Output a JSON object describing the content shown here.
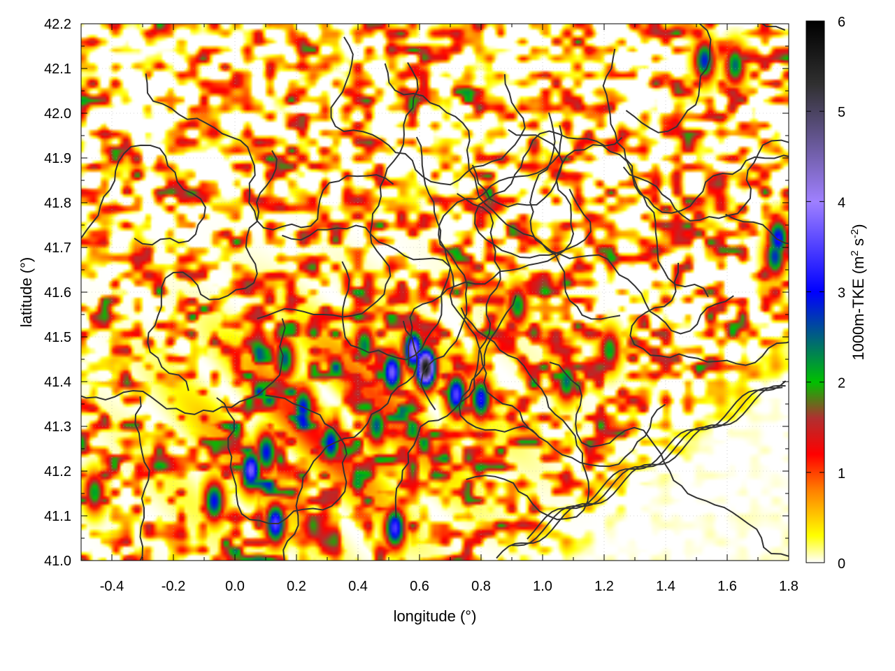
{
  "chart_data": {
    "type": "heatmap",
    "xlabel": "longitude (°)",
    "ylabel": "latitude (°)",
    "colorbar_label": "1000m-TKE (m² s⁻²)",
    "colorbar_label_parts": {
      "name": "1000m-TKE (m",
      "sup1": "2",
      "mid": " s",
      "sup2": "-2",
      "end": ")"
    },
    "xlim": [
      -0.5,
      1.8
    ],
    "ylim": [
      41.0,
      42.2
    ],
    "zlim": [
      0,
      6
    ],
    "x_ticks": [
      "-0.4",
      "-0.2",
      "0.0",
      "0.2",
      "0.4",
      "0.6",
      "0.8",
      "1.0",
      "1.2",
      "1.4",
      "1.6",
      "1.8"
    ],
    "x_tick_values": [
      -0.4,
      -0.2,
      0.0,
      0.2,
      0.4,
      0.6,
      0.8,
      1.0,
      1.2,
      1.4,
      1.6,
      1.8
    ],
    "y_ticks": [
      "41.0",
      "41.1",
      "41.2",
      "41.3",
      "41.4",
      "41.5",
      "41.6",
      "41.7",
      "41.8",
      "41.9",
      "42.0",
      "42.1",
      "42.2"
    ],
    "y_tick_values": [
      41.0,
      41.1,
      41.2,
      41.3,
      41.4,
      41.5,
      41.6,
      41.7,
      41.8,
      41.9,
      42.0,
      42.1,
      42.2
    ],
    "cb_ticks": [
      "0",
      "1",
      "2",
      "3",
      "4",
      "5",
      "6"
    ],
    "cb_tick_values": [
      0,
      1,
      2,
      3,
      4,
      5,
      6
    ],
    "grid": true,
    "colormap": [
      "#ffffff",
      "#ffff00",
      "#ff8000",
      "#ff0000",
      "#b03030",
      "#00c000",
      "#0000ff",
      "#9f80ff",
      "#303030",
      "#000000"
    ],
    "colormap_stops": [
      0,
      0.3,
      0.8,
      1.2,
      1.6,
      2.0,
      3.0,
      4.0,
      5.3,
      6.0
    ],
    "hotspots": [
      {
        "lon": 0.62,
        "lat": 41.43,
        "tke": 5.8
      },
      {
        "lon": 0.58,
        "lat": 41.47,
        "tke": 4.2
      },
      {
        "lon": 0.51,
        "lat": 41.42,
        "tke": 3.8
      },
      {
        "lon": 0.72,
        "lat": 41.37,
        "tke": 3.6
      },
      {
        "lon": 0.8,
        "lat": 41.36,
        "tke": 3.2
      },
      {
        "lon": 0.05,
        "lat": 41.2,
        "tke": 3.8
      },
      {
        "lon": 0.1,
        "lat": 41.24,
        "tke": 3.0
      },
      {
        "lon": 0.13,
        "lat": 41.08,
        "tke": 3.6
      },
      {
        "lon": 0.52,
        "lat": 41.07,
        "tke": 3.5
      },
      {
        "lon": -0.07,
        "lat": 41.13,
        "tke": 3.0
      },
      {
        "lon": 0.22,
        "lat": 41.34,
        "tke": 3.0
      },
      {
        "lon": 0.31,
        "lat": 41.26,
        "tke": 3.1
      },
      {
        "lon": 0.16,
        "lat": 41.45,
        "tke": 2.6
      },
      {
        "lon": 0.42,
        "lat": 41.48,
        "tke": 2.4
      },
      {
        "lon": 0.92,
        "lat": 41.57,
        "tke": 2.3
      },
      {
        "lon": 1.77,
        "lat": 41.72,
        "tke": 3.2
      },
      {
        "lon": 1.76,
        "lat": 41.68,
        "tke": 2.8
      },
      {
        "lon": 1.63,
        "lat": 42.11,
        "tke": 2.5
      },
      {
        "lon": 1.53,
        "lat": 42.12,
        "tke": 2.9
      },
      {
        "lon": 1.08,
        "lat": 41.4,
        "tke": 2.5
      },
      {
        "lon": 1.22,
        "lat": 41.47,
        "tke": 2.2
      },
      {
        "lon": 0.46,
        "lat": 41.3,
        "tke": 2.6
      },
      {
        "lon": -0.46,
        "lat": 41.15,
        "tke": 2.2
      }
    ],
    "lowland_region": {
      "lon_start": 0.95,
      "lat_top": 41.55,
      "note": "coastal plain with near-zero TKE"
    }
  }
}
